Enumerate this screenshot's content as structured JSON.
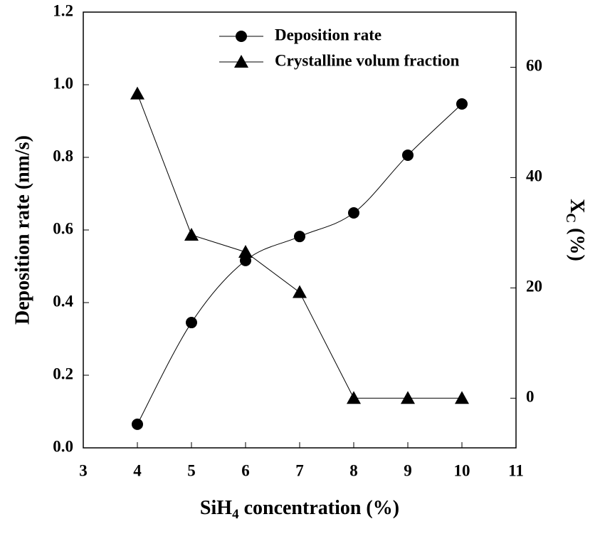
{
  "chart_data": {
    "type": "line",
    "xlabel": [
      "SiH",
      "4",
      " concentration (%)"
    ],
    "ylabel": "Deposition rate (nm/s)",
    "y2label": [
      "X",
      "C",
      " (%)"
    ],
    "x": [
      4,
      5,
      6,
      7,
      8,
      9,
      10
    ],
    "series": [
      {
        "name": "Deposition rate",
        "color": "#000000",
        "marker": "circle",
        "smooth": true,
        "axis": "y",
        "values": [
          0.065,
          0.345,
          0.516,
          0.582,
          0.647,
          0.806,
          0.947
        ]
      },
      {
        "name": "Crystalline volum fraction",
        "color": "#000000",
        "marker": "triangle",
        "smooth": false,
        "axis": "y2",
        "values": [
          55.2,
          29.6,
          26.5,
          19.2,
          0,
          0,
          0
        ]
      }
    ],
    "xlim": [
      3,
      11
    ],
    "xticks": [
      3,
      4,
      5,
      6,
      7,
      8,
      9,
      10,
      11
    ],
    "ylim": [
      0,
      1.2
    ],
    "yticks": [
      {
        "value": 0,
        "label": "0.0"
      },
      0.2,
      0.4,
      0.6,
      0.8,
      {
        "value": 1,
        "label": "1.0"
      },
      1.2
    ],
    "y2lim": [
      -9,
      70
    ],
    "y2ticks": [
      0,
      20,
      40,
      60
    ],
    "grid": false,
    "legend": "upper center"
  }
}
